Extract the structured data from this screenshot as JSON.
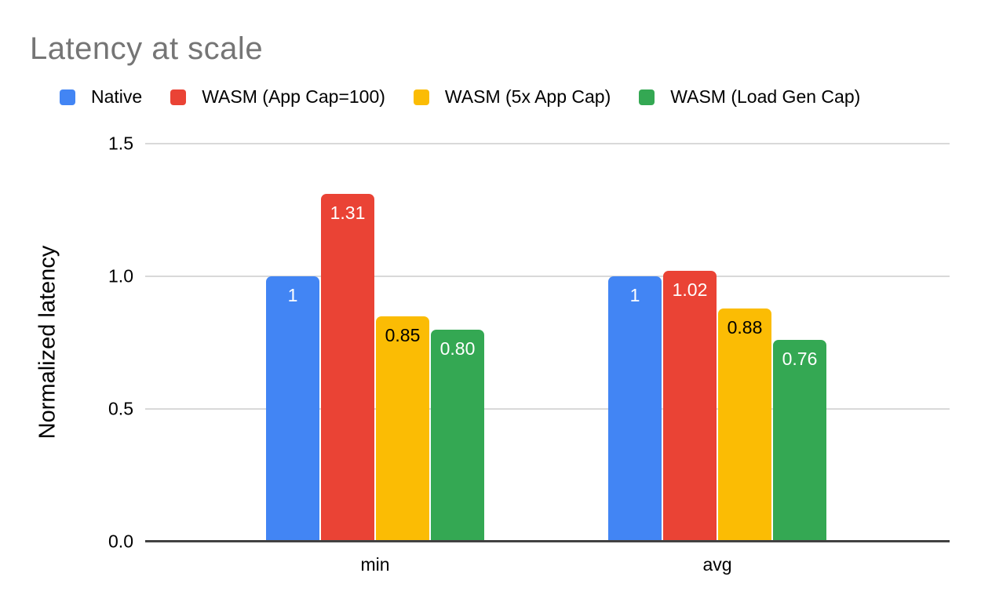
{
  "title": {
    "text": "Latency at scale",
    "color": "#757575"
  },
  "axes": {
    "y_label": "Normalized latency",
    "y_tick_labels": [
      "0.0",
      "0.5",
      "1.0",
      "1.5"
    ],
    "x_tick_labels": [
      "min",
      "avg"
    ]
  },
  "colors": {
    "grid": "#d9d9d9",
    "baseline": "#424242",
    "title_text": "#757575",
    "background": "#ffffff"
  },
  "chart_data": {
    "type": "bar",
    "title": "Latency at scale",
    "xlabel": "",
    "ylabel": "Normalized latency",
    "categories": [
      "min",
      "avg"
    ],
    "series": [
      {
        "name": "Native",
        "color": "#4285F4",
        "label_color": "#ffffff",
        "values": [
          1.0,
          1.0
        ],
        "labels": [
          "1",
          "1"
        ]
      },
      {
        "name": "WASM (App Cap=100)",
        "color": "#EA4335",
        "label_color": "#ffffff",
        "values": [
          1.31,
          1.02
        ],
        "labels": [
          "1.31",
          "1.02"
        ]
      },
      {
        "name": "WASM (5x App Cap)",
        "color": "#FBBC04",
        "label_color": "#000000",
        "values": [
          0.85,
          0.88
        ],
        "labels": [
          "0.85",
          "0.88"
        ]
      },
      {
        "name": "WASM (Load Gen Cap)",
        "color": "#34A853",
        "label_color": "#ffffff",
        "values": [
          0.8,
          0.76
        ],
        "labels": [
          "0.80",
          "0.76"
        ]
      }
    ],
    "ylim": [
      0,
      1.5
    ],
    "yticks": [
      {
        "label": "0.0",
        "value": 0.0
      },
      {
        "label": "0.5",
        "value": 0.5
      },
      {
        "label": "1.0",
        "value": 1.0
      },
      {
        "label": "1.5",
        "value": 1.5
      }
    ],
    "grid": true,
    "legend_position": "top"
  }
}
